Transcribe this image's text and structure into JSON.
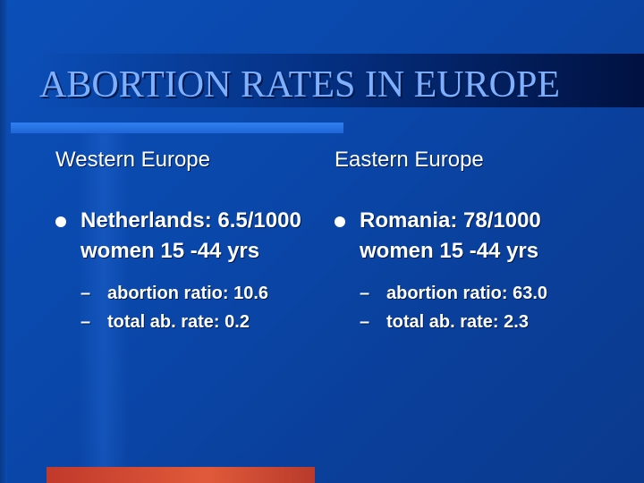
{
  "slide": {
    "title": "ABORTION  RATES IN EUROPE",
    "columns": [
      {
        "heading": "Western Europe",
        "bullet_text": "Netherlands: 6.5/1000 women 15 -44 yrs",
        "subitems": [
          "abortion ratio: 10.6",
          "total ab. rate: 0.2"
        ]
      },
      {
        "heading": "Eastern Europe",
        "bullet_text": "Romania: 78/1000 women  15 -44 yrs",
        "subitems": [
          "abortion ratio: 63.0",
          "total ab. rate: 2.3"
        ]
      }
    ],
    "bullet_glyph": "l",
    "dash_glyph": "–"
  }
}
